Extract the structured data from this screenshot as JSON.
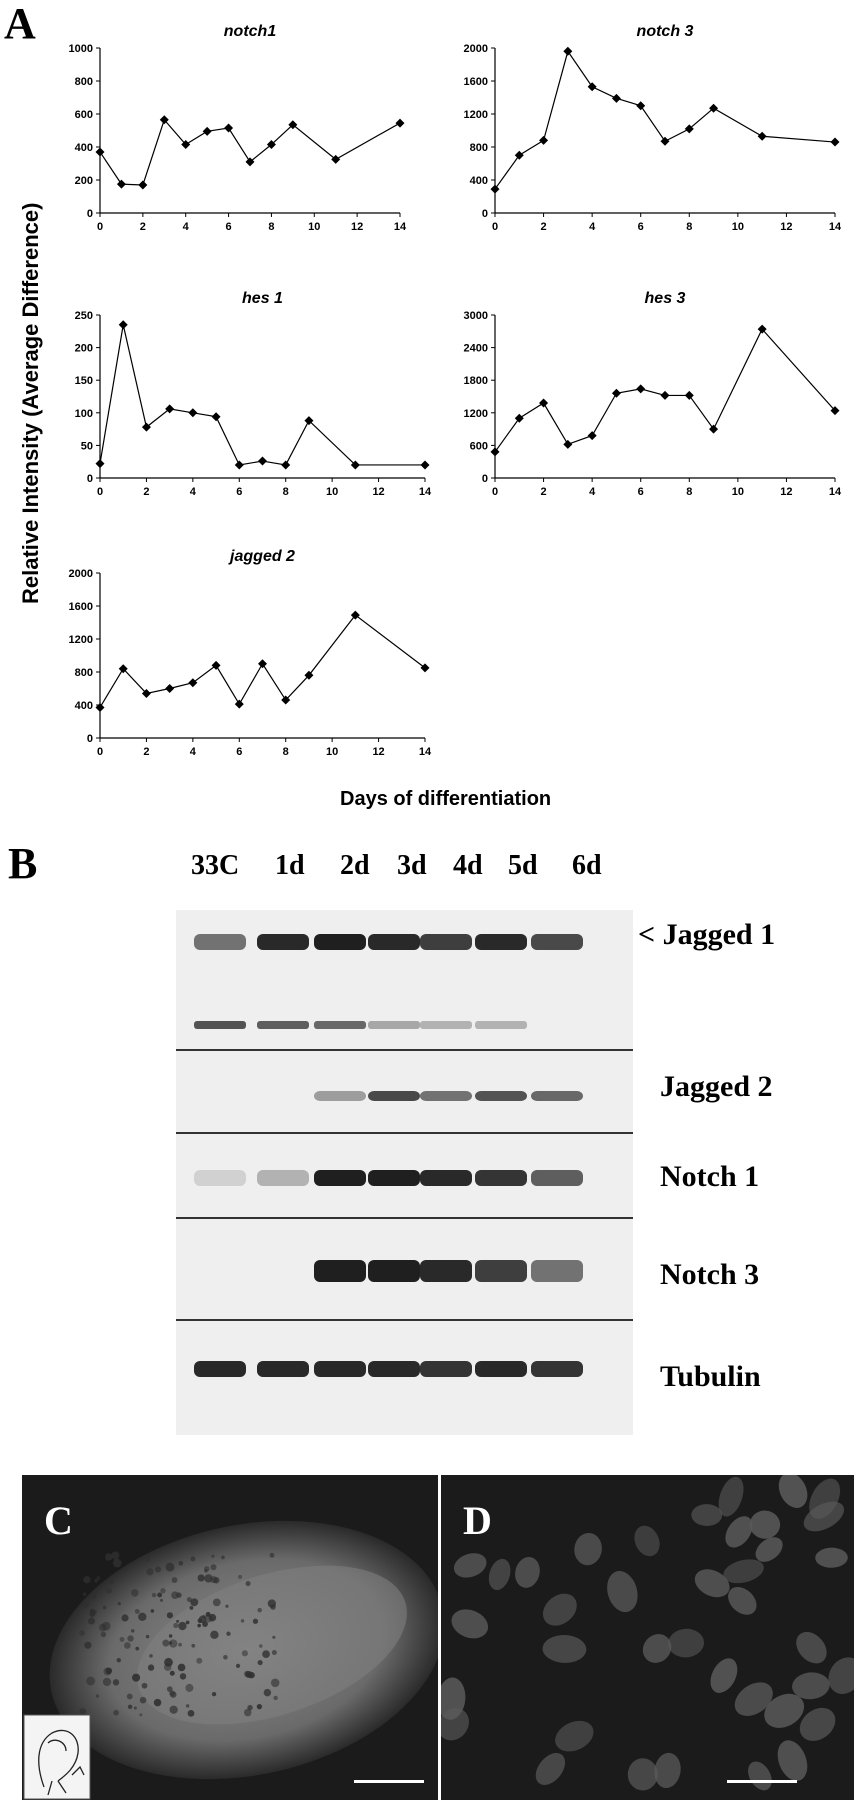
{
  "figure": {
    "panel_labels": {
      "a": "A",
      "b": "B",
      "c": "C",
      "d": "D"
    },
    "y_axis_label": "Relative Intensity (Average Difference)",
    "x_axis_label": "Days of differentiation"
  },
  "chart_data": [
    {
      "type": "line",
      "title": "notch1",
      "x": [
        0,
        1,
        2,
        3,
        4,
        5,
        6,
        7,
        8,
        9,
        11,
        14
      ],
      "y": [
        370,
        175,
        170,
        565,
        415,
        495,
        515,
        310,
        415,
        535,
        325,
        545
      ],
      "xticks": [
        0,
        2,
        4,
        6,
        8,
        10,
        12,
        14
      ],
      "yticks": [
        0,
        200,
        400,
        600,
        800,
        1000
      ],
      "xlim": [
        0,
        14
      ],
      "ylim": [
        0,
        1000
      ],
      "grid": false,
      "marker": "diamond"
    },
    {
      "type": "line",
      "title": "notch 3",
      "x": [
        0,
        1,
        2,
        3,
        4,
        5,
        6,
        7,
        8,
        9,
        11,
        14
      ],
      "y": [
        290,
        700,
        880,
        1960,
        1530,
        1390,
        1300,
        870,
        1020,
        1270,
        930,
        860
      ],
      "xticks": [
        0,
        2,
        4,
        6,
        8,
        10,
        12,
        14
      ],
      "yticks": [
        0,
        400,
        800,
        1200,
        1600,
        2000
      ],
      "xlim": [
        0,
        14
      ],
      "ylim": [
        0,
        2000
      ],
      "grid": false,
      "marker": "diamond"
    },
    {
      "type": "line",
      "title": "hes 1",
      "x": [
        0,
        1,
        2,
        3,
        4,
        5,
        6,
        7,
        8,
        9,
        11,
        14
      ],
      "y": [
        22,
        235,
        78,
        106,
        100,
        94,
        20,
        26,
        20,
        88,
        20,
        20
      ],
      "xticks": [
        0,
        2,
        4,
        6,
        8,
        10,
        12,
        14
      ],
      "yticks": [
        0,
        50,
        100,
        150,
        200,
        250
      ],
      "xlim": [
        0,
        14
      ],
      "ylim": [
        0,
        250
      ],
      "grid": false,
      "marker": "diamond"
    },
    {
      "type": "line",
      "title": "hes 3",
      "x": [
        0,
        1,
        2,
        3,
        4,
        5,
        6,
        7,
        8,
        9,
        11,
        14
      ],
      "y": [
        480,
        1100,
        1380,
        620,
        780,
        1560,
        1640,
        1520,
        1520,
        900,
        2740,
        1240
      ],
      "xticks": [
        0,
        2,
        4,
        6,
        8,
        10,
        12,
        14
      ],
      "yticks": [
        0,
        600,
        1200,
        1800,
        2400,
        3000
      ],
      "xlim": [
        0,
        14
      ],
      "ylim": [
        0,
        3000
      ],
      "grid": false,
      "marker": "diamond"
    },
    {
      "type": "line",
      "title": "jagged 2",
      "x": [
        0,
        1,
        2,
        3,
        4,
        5,
        6,
        7,
        8,
        9,
        11,
        14
      ],
      "y": [
        370,
        840,
        540,
        600,
        670,
        880,
        410,
        900,
        460,
        760,
        1490,
        850
      ],
      "xticks": [
        0,
        2,
        4,
        6,
        8,
        10,
        12,
        14
      ],
      "yticks": [
        0,
        400,
        800,
        1200,
        1600,
        2000
      ],
      "xlim": [
        0,
        14
      ],
      "ylim": [
        0,
        2000
      ],
      "grid": false,
      "marker": "diamond"
    }
  ],
  "blot": {
    "lanes": [
      "33C",
      "1d",
      "2d",
      "3d",
      "4d",
      "5d",
      "6d"
    ],
    "rows": [
      {
        "label": "< Jagged 1",
        "intensity": [
          0.55,
          0.9,
          0.95,
          0.9,
          0.8,
          0.9,
          0.75
        ],
        "secondary": [
          0.7,
          0.65,
          0.6,
          0.3,
          0.25,
          0.25,
          0.0
        ]
      },
      {
        "label": "Jagged 2",
        "intensity": [
          0.0,
          0.0,
          0.35,
          0.75,
          0.55,
          0.7,
          0.6
        ]
      },
      {
        "label": "Notch 1",
        "intensity": [
          0.1,
          0.25,
          0.95,
          0.95,
          0.9,
          0.85,
          0.65
        ]
      },
      {
        "label": "Notch 3",
        "intensity": [
          0.0,
          0.0,
          0.95,
          0.95,
          0.9,
          0.8,
          0.55
        ]
      },
      {
        "label": "Tubulin",
        "intensity": [
          0.9,
          0.9,
          0.9,
          0.9,
          0.85,
          0.9,
          0.85
        ]
      }
    ]
  }
}
